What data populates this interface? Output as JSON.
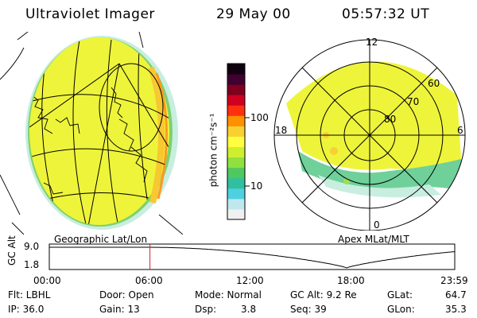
{
  "header": {
    "title": "Ultraviolet Imager",
    "date": "29 May 00",
    "time": "05:57:32 UT"
  },
  "colorbar": {
    "label": "photon cm⁻²s⁻¹",
    "tick_100": "100",
    "tick_10": "10",
    "colors": [
      "#f0f0f0",
      "#bfe8ee",
      "#4fd0e0",
      "#30c0a0",
      "#50c860",
      "#90e040",
      "#d0ee30",
      "#ffff40",
      "#f8d030",
      "#ff9000",
      "#ff3010",
      "#d00020",
      "#800020",
      "#400030",
      "#100010"
    ]
  },
  "left_map": {
    "caption": "Geographic Lat/Lon"
  },
  "right_map": {
    "caption": "Apex MLat/MLT",
    "mlt_12": "12",
    "mlt_18": "18",
    "mlt_6": "6",
    "mlt_0": "0",
    "mlat_60": "60",
    "mlat_70": "70",
    "mlat_80": "80"
  },
  "altitude_plot": {
    "ylabel": "GC Alt",
    "y_high": "9.0",
    "y_low": "1.8",
    "x_ticks": [
      "00:00",
      "06:00",
      "12:00",
      "18:00",
      "23:59"
    ],
    "marker_time": "05:57:32",
    "marker_color": "#d02020"
  },
  "info": {
    "flt": "Flt: LBHL",
    "ip": "IP: 36.0",
    "door": "Door: Open",
    "gain": "Gain: 13",
    "mode": "Mode: Normal",
    "dsp_label": "Dsp:",
    "dsp_value": "3.8",
    "gcalt": "GC Alt: 9.2 Re",
    "seq": "Seq: 39",
    "glat_label": "GLat:",
    "glat_value": "64.7",
    "glon_label": "GLon:",
    "glon_value": "35.3"
  }
}
